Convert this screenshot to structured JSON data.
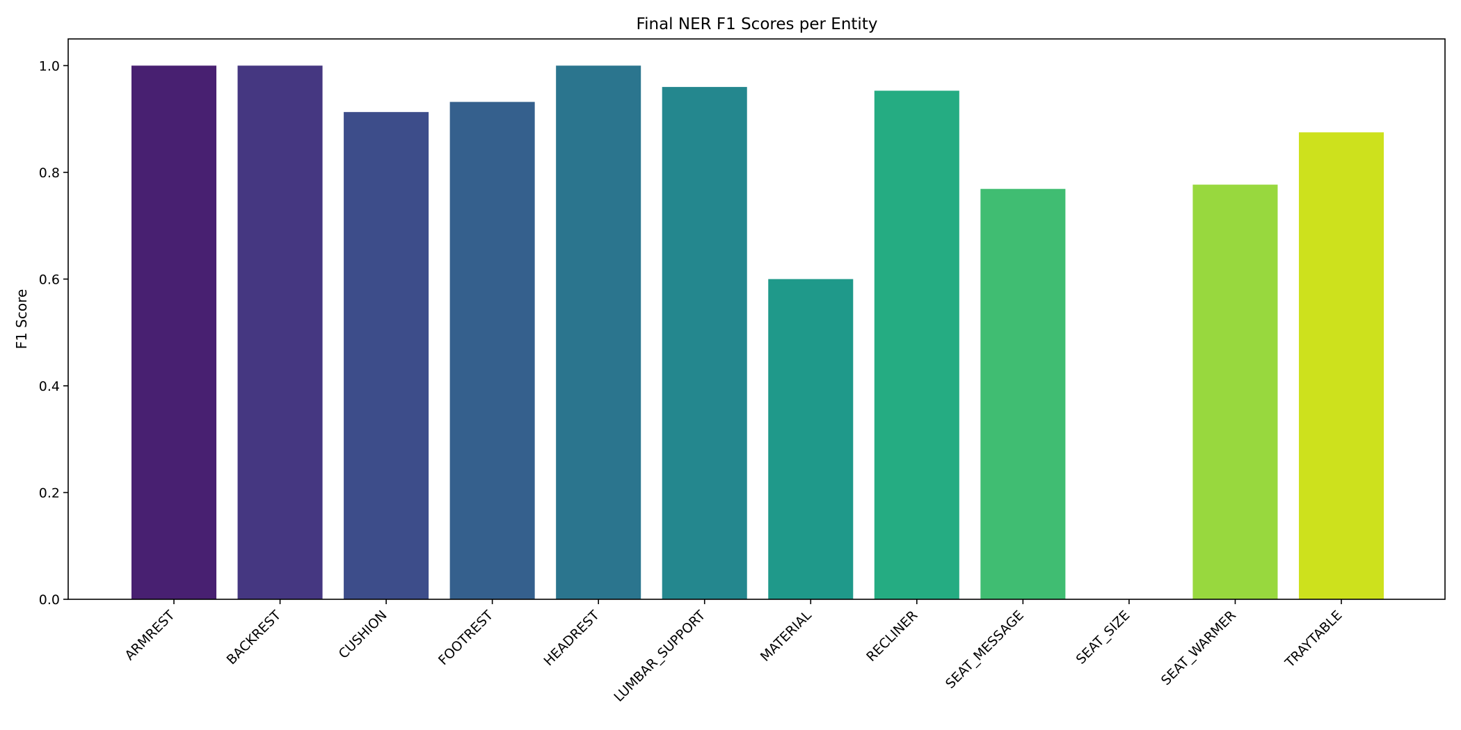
{
  "chart_data": {
    "type": "bar",
    "title": "Final NER F1 Scores per Entity",
    "xlabel": "",
    "ylabel": "F1 Score",
    "categories": [
      "ARMREST",
      "BACKREST",
      "CUSHION",
      "FOOTREST",
      "HEADREST",
      "LUMBAR_SUPPORT",
      "MATERIAL",
      "RECLINER",
      "SEAT_MESSAGE",
      "SEAT_SIZE",
      "SEAT_WARMER",
      "TRAYTABLE"
    ],
    "values": [
      1.0,
      1.0,
      0.913,
      0.932,
      1.0,
      0.96,
      0.6,
      0.953,
      0.769,
      0.0,
      0.777,
      0.875
    ],
    "colors": [
      "#482071",
      "#453781",
      "#3d4d8a",
      "#35608d",
      "#2b758e",
      "#24878e",
      "#1f998a",
      "#25ac82",
      "#40bd72",
      "#67cc5c",
      "#98d83e",
      "#cde11d"
    ],
    "ylim": [
      0,
      1.05
    ],
    "yticks": [
      "0.0",
      "0.2",
      "0.4",
      "0.6",
      "0.8",
      "1.0"
    ],
    "grid": false,
    "legend": false
  }
}
